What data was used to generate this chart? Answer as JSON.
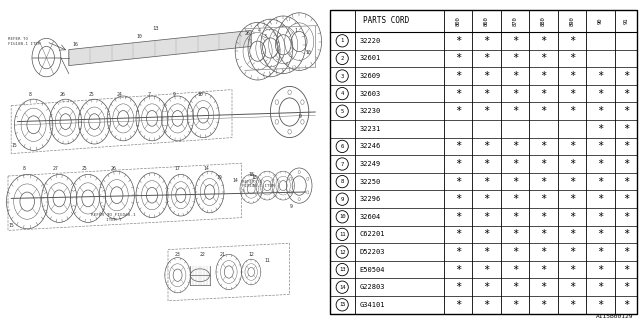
{
  "diagram_label": "A115B00129",
  "rows": [
    {
      "num": "1",
      "code": "32220",
      "marks": [
        1,
        1,
        1,
        1,
        1,
        0,
        0
      ]
    },
    {
      "num": "2",
      "code": "32601",
      "marks": [
        1,
        1,
        1,
        1,
        1,
        0,
        0
      ]
    },
    {
      "num": "3",
      "code": "32609",
      "marks": [
        1,
        1,
        1,
        1,
        1,
        1,
        1
      ]
    },
    {
      "num": "4",
      "code": "32603",
      "marks": [
        1,
        1,
        1,
        1,
        1,
        1,
        1
      ]
    },
    {
      "num": "5",
      "code": "32230",
      "marks": [
        1,
        1,
        1,
        1,
        1,
        1,
        1
      ],
      "sub": "32231",
      "sub_marks": [
        0,
        0,
        0,
        0,
        0,
        1,
        1
      ]
    },
    {
      "num": "6",
      "code": "32246",
      "marks": [
        1,
        1,
        1,
        1,
        1,
        1,
        1
      ]
    },
    {
      "num": "7",
      "code": "32249",
      "marks": [
        1,
        1,
        1,
        1,
        1,
        1,
        1
      ]
    },
    {
      "num": "8",
      "code": "32250",
      "marks": [
        1,
        1,
        1,
        1,
        1,
        1,
        1
      ]
    },
    {
      "num": "9",
      "code": "32296",
      "marks": [
        1,
        1,
        1,
        1,
        1,
        1,
        1
      ]
    },
    {
      "num": "10",
      "code": "32604",
      "marks": [
        1,
        1,
        1,
        1,
        1,
        1,
        1
      ]
    },
    {
      "num": "11",
      "code": "C62201",
      "marks": [
        1,
        1,
        1,
        1,
        1,
        1,
        1
      ]
    },
    {
      "num": "12",
      "code": "D52203",
      "marks": [
        1,
        1,
        1,
        1,
        1,
        1,
        1
      ]
    },
    {
      "num": "13",
      "code": "E50504",
      "marks": [
        1,
        1,
        1,
        1,
        1,
        1,
        1
      ]
    },
    {
      "num": "14",
      "code": "G22803",
      "marks": [
        1,
        1,
        1,
        1,
        1,
        1,
        1
      ]
    },
    {
      "num": "15",
      "code": "G34101",
      "marks": [
        1,
        1,
        1,
        1,
        1,
        1,
        1
      ]
    }
  ],
  "col_headers": [
    "800",
    "860",
    "870",
    "880",
    "890",
    "90",
    "91"
  ],
  "bg_color": "#ffffff"
}
